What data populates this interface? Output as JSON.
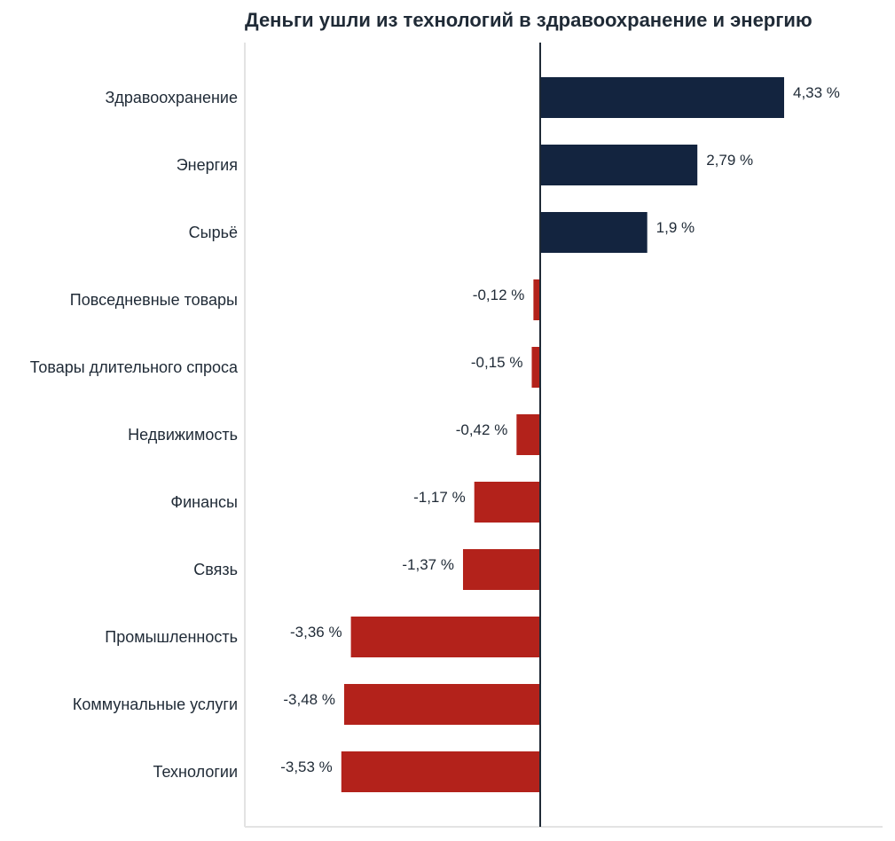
{
  "chart_data": {
    "type": "bar",
    "orientation": "horizontal",
    "title": "Деньги ушли из технологий в здравоохранение и энергию",
    "categories": [
      "Здравоохранение",
      "Энергия",
      "Сырьё",
      "Повседневные товары",
      "Товары длительного спроса",
      "Недвижимость",
      "Финансы",
      "Связь",
      "Промышленность",
      "Коммунальные услуги",
      "Технологии"
    ],
    "values": [
      4.33,
      2.79,
      1.9,
      -0.12,
      -0.15,
      -0.42,
      -1.17,
      -1.37,
      -3.36,
      -3.48,
      -3.53
    ],
    "value_labels": [
      "4,33 %",
      "2,79 %",
      "1,9 %",
      "-0,12 %",
      "-0,15 %",
      "-0,42 %",
      "-1,17 %",
      "-1,37 %",
      "-3,36 %",
      "-3,48 %",
      "-3,53 %"
    ],
    "xlim": [
      -5.2,
      6.0
    ],
    "grid": false,
    "colors": {
      "positive": "#13243f",
      "negative": "#b3221b",
      "axis": "#1f2a36",
      "frame": "#e3e3e3"
    }
  }
}
